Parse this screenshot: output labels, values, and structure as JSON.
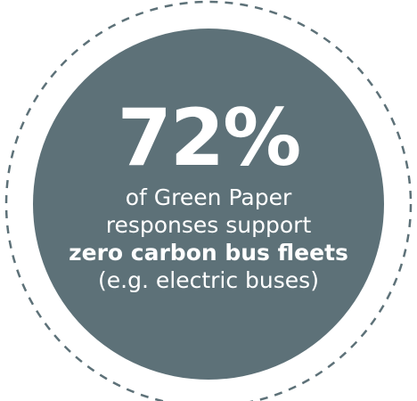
{
  "stat": {
    "value": "72%",
    "line1": "of Green Paper",
    "line2": "responses support",
    "line3": "zero carbon bus fleets",
    "line4": "(e.g. electric buses)"
  },
  "colors": {
    "disc": "#5d7178",
    "ring": "#5d7178",
    "text": "#ffffff",
    "background": "#ffffff"
  }
}
